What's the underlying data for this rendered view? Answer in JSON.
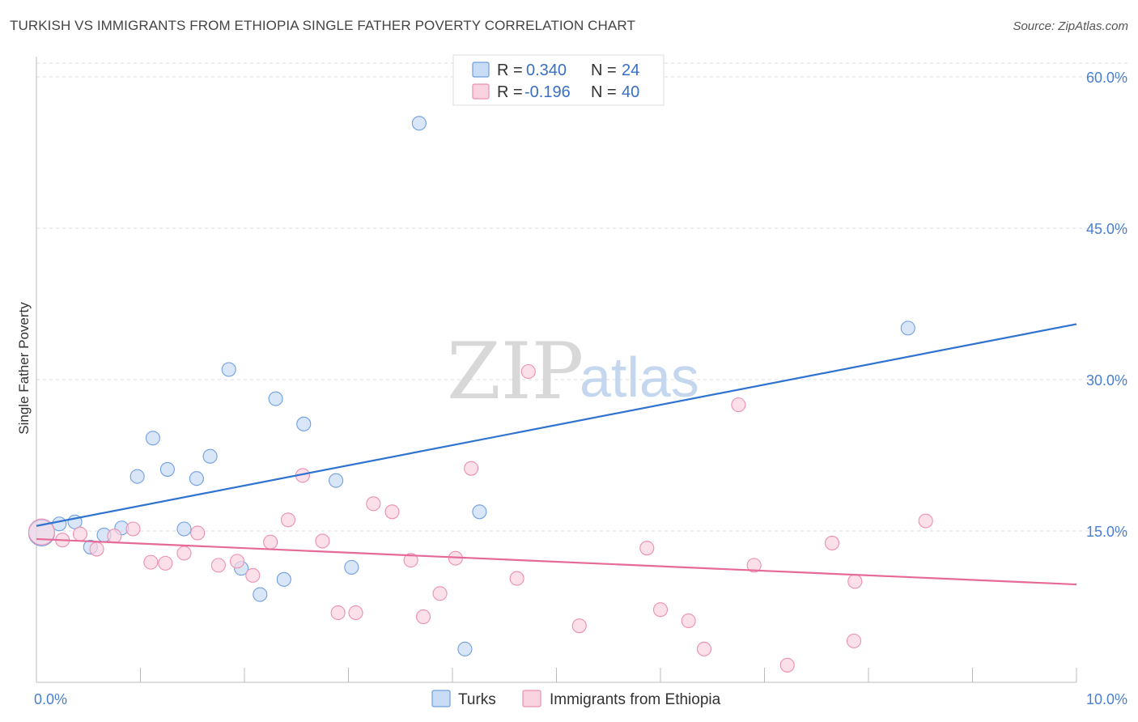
{
  "header": {
    "title": "TURKISH VS IMMIGRANTS FROM ETHIOPIA SINGLE FATHER POVERTY CORRELATION CHART",
    "source": "Source: ZipAtlas.com"
  },
  "watermark": {
    "zip": "ZIP",
    "atlas": "atlas"
  },
  "colors": {
    "turks": "#6f9fe0",
    "turks_fill": "#c9dcf5",
    "turks_line": "#2f72d0",
    "ethiopia": "#ec8fb0",
    "ethiopia_fill": "#f9d3e0",
    "ethiopia_line": "#e56a97",
    "grid": "#dddddd",
    "tick_label": "#4a7fd0"
  },
  "legend_top": {
    "rows": [
      {
        "r_label": "R = ",
        "r_value": "0.340",
        "n_label": "N = ",
        "n_value": "24"
      },
      {
        "r_label": "R = ",
        "r_value": "-0.196",
        "n_label": "N = ",
        "n_value": "40"
      }
    ]
  },
  "chart_data": {
    "type": "scatter",
    "ylabel": "Single Father Poverty",
    "xlim": [
      0,
      10
    ],
    "ylim": [
      0,
      62
    ],
    "x_tick_labels": [
      {
        "value": 0,
        "label": "0.0%"
      },
      {
        "value": 10,
        "label": "10.0%"
      }
    ],
    "y_tick_labels": [
      {
        "value": 15,
        "label": "15.0%"
      },
      {
        "value": 30,
        "label": "30.0%"
      },
      {
        "value": 45,
        "label": "45.0%"
      },
      {
        "value": 60,
        "label": "60.0%"
      }
    ],
    "grid": "horizontal-dashed",
    "legend": "bottom-center",
    "series": [
      {
        "name": "Turks",
        "trend": {
          "x": [
            0,
            10
          ],
          "y": [
            15.5,
            35.5
          ]
        },
        "points": [
          {
            "x": 0.05,
            "y": 14.8,
            "big": true
          },
          {
            "x": 0.22,
            "y": 15.7
          },
          {
            "x": 0.37,
            "y": 15.9
          },
          {
            "x": 0.52,
            "y": 13.4
          },
          {
            "x": 0.65,
            "y": 14.6
          },
          {
            "x": 0.82,
            "y": 15.3
          },
          {
            "x": 0.97,
            "y": 20.4
          },
          {
            "x": 1.12,
            "y": 24.2
          },
          {
            "x": 1.26,
            "y": 21.1
          },
          {
            "x": 1.42,
            "y": 15.2
          },
          {
            "x": 1.54,
            "y": 20.2
          },
          {
            "x": 1.67,
            "y": 22.4
          },
          {
            "x": 1.85,
            "y": 31.0
          },
          {
            "x": 1.97,
            "y": 11.3
          },
          {
            "x": 2.15,
            "y": 8.7
          },
          {
            "x": 2.3,
            "y": 28.1
          },
          {
            "x": 2.38,
            "y": 10.2
          },
          {
            "x": 2.57,
            "y": 25.6
          },
          {
            "x": 2.88,
            "y": 20.0
          },
          {
            "x": 3.03,
            "y": 11.4
          },
          {
            "x": 3.68,
            "y": 55.4
          },
          {
            "x": 4.12,
            "y": 3.3
          },
          {
            "x": 4.26,
            "y": 16.9
          },
          {
            "x": 8.38,
            "y": 35.1
          }
        ]
      },
      {
        "name": "Immigrants from Ethiopia",
        "trend": {
          "x": [
            0,
            10
          ],
          "y": [
            14.2,
            9.7
          ]
        },
        "points": [
          {
            "x": 0.05,
            "y": 14.9,
            "big": true
          },
          {
            "x": 0.25,
            "y": 14.1
          },
          {
            "x": 0.42,
            "y": 14.7
          },
          {
            "x": 0.58,
            "y": 13.2
          },
          {
            "x": 0.75,
            "y": 14.5
          },
          {
            "x": 0.93,
            "y": 15.2
          },
          {
            "x": 1.1,
            "y": 11.9
          },
          {
            "x": 1.24,
            "y": 11.8
          },
          {
            "x": 1.42,
            "y": 12.8
          },
          {
            "x": 1.55,
            "y": 14.8
          },
          {
            "x": 1.75,
            "y": 11.6
          },
          {
            "x": 1.93,
            "y": 12.0
          },
          {
            "x": 2.08,
            "y": 10.6
          },
          {
            "x": 2.25,
            "y": 13.9
          },
          {
            "x": 2.42,
            "y": 16.1
          },
          {
            "x": 2.56,
            "y": 20.5
          },
          {
            "x": 2.75,
            "y": 14.0
          },
          {
            "x": 2.9,
            "y": 6.9
          },
          {
            "x": 3.07,
            "y": 6.9
          },
          {
            "x": 3.24,
            "y": 17.7
          },
          {
            "x": 3.42,
            "y": 16.9
          },
          {
            "x": 3.6,
            "y": 12.1
          },
          {
            "x": 3.72,
            "y": 6.5
          },
          {
            "x": 3.88,
            "y": 8.8
          },
          {
            "x": 4.03,
            "y": 12.3
          },
          {
            "x": 4.18,
            "y": 21.2
          },
          {
            "x": 4.62,
            "y": 10.3
          },
          {
            "x": 4.73,
            "y": 30.8
          },
          {
            "x": 5.22,
            "y": 5.6
          },
          {
            "x": 5.87,
            "y": 13.3
          },
          {
            "x": 6.0,
            "y": 7.2
          },
          {
            "x": 6.27,
            "y": 6.1
          },
          {
            "x": 6.42,
            "y": 3.3
          },
          {
            "x": 6.75,
            "y": 27.5
          },
          {
            "x": 6.9,
            "y": 11.6
          },
          {
            "x": 7.22,
            "y": 1.7
          },
          {
            "x": 7.65,
            "y": 13.8
          },
          {
            "x": 7.86,
            "y": 4.1
          },
          {
            "x": 7.87,
            "y": 10.0
          },
          {
            "x": 8.55,
            "y": 16.0
          }
        ]
      }
    ]
  }
}
